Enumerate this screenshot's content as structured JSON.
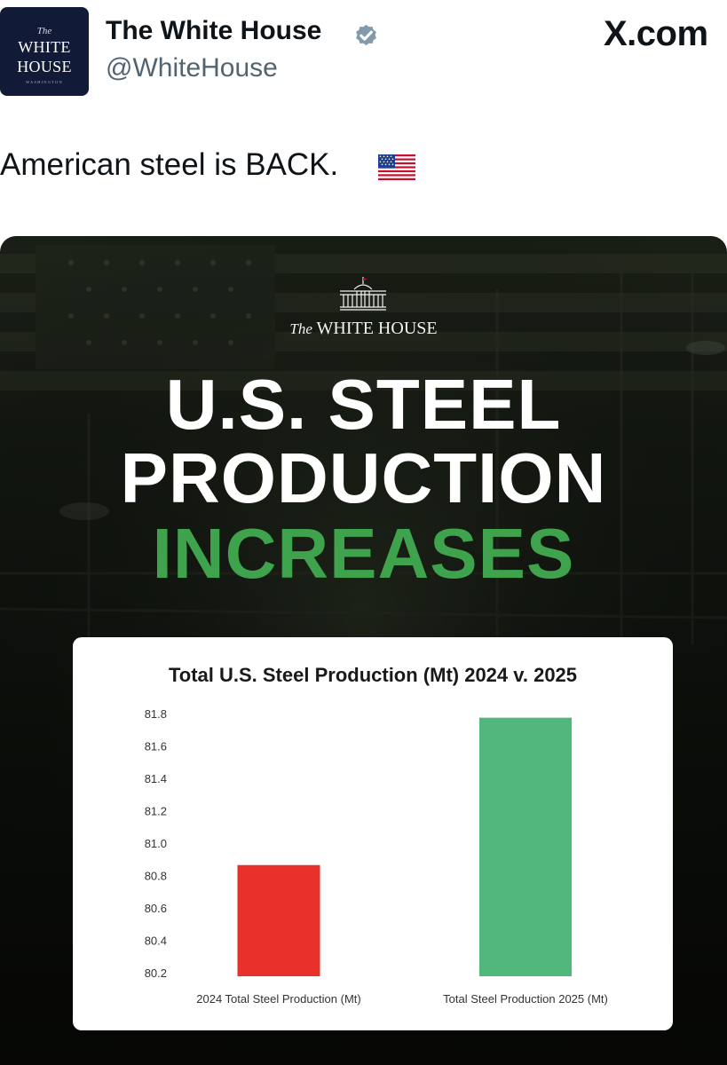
{
  "post": {
    "author_name": "The White House",
    "handle": "@WhiteHouse",
    "site": "X.com",
    "text": "American steel is BACK.",
    "avatar": {
      "line_the": "The",
      "line1": "WHITE",
      "line2": "HOUSE",
      "line_sub": "WASHINGTON"
    }
  },
  "graphic": {
    "brand_the": "The",
    "brand_name": "WHITE HOUSE",
    "headline_line1": "U.S. STEEL",
    "headline_line2": "PRODUCTION",
    "headline_line3": "INCREASES"
  },
  "colors": {
    "verified": "#829aab",
    "headline_accent": "#3fa34d",
    "bar_2024": "#e8312a",
    "bar_2025": "#52b77a"
  },
  "icons": {
    "verified": "verified-badge-icon",
    "flag": "us-flag-icon"
  },
  "chart_data": {
    "type": "bar",
    "title": "Total U.S. Steel Production (Mt) 2024 v. 2025",
    "categories": [
      "2024 Total Steel Production (Mt)",
      "Total Steel Production 2025 (Mt)"
    ],
    "values": [
      80.87,
      81.78
    ],
    "yticks": [
      "81.8",
      "81.6",
      "81.4",
      "81.2",
      "81.0",
      "80.8",
      "80.6",
      "80.4",
      "80.2"
    ],
    "ylim": [
      80.2,
      81.8
    ],
    "xlabel": "",
    "ylabel": "",
    "grid": false
  }
}
